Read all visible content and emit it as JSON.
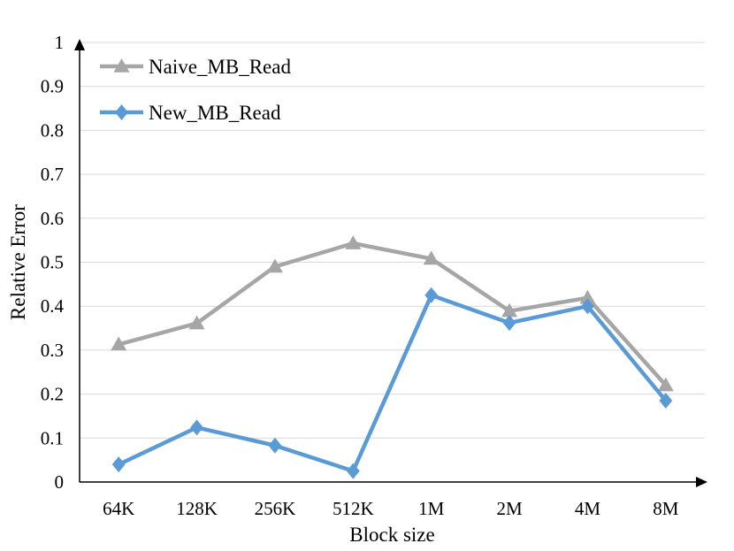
{
  "chart_data": {
    "type": "line",
    "categories": [
      "64K",
      "128K",
      "256K",
      "512K",
      "1M",
      "2M",
      "4M",
      "8M"
    ],
    "series": [
      {
        "name": "Naive_MB_Read",
        "values": [
          0.313,
          0.361,
          0.49,
          0.543,
          0.508,
          0.389,
          0.419,
          0.22
        ],
        "color": "#a6a6a6",
        "marker": "triangle"
      },
      {
        "name": "New_MB_Read",
        "values": [
          0.04,
          0.124,
          0.083,
          0.025,
          0.425,
          0.362,
          0.4,
          0.185
        ],
        "color": "#5b9bd5",
        "marker": "diamond"
      }
    ],
    "xlabel": "Block size",
    "ylabel": "Relative Error",
    "ylim": [
      0,
      1
    ],
    "yticks": [
      "0",
      "0.1",
      "0.2",
      "0.3",
      "0.4",
      "0.5",
      "0.6",
      "0.7",
      "0.8",
      "0.9",
      "1"
    ],
    "grid": true,
    "legend_position": "top-left"
  }
}
